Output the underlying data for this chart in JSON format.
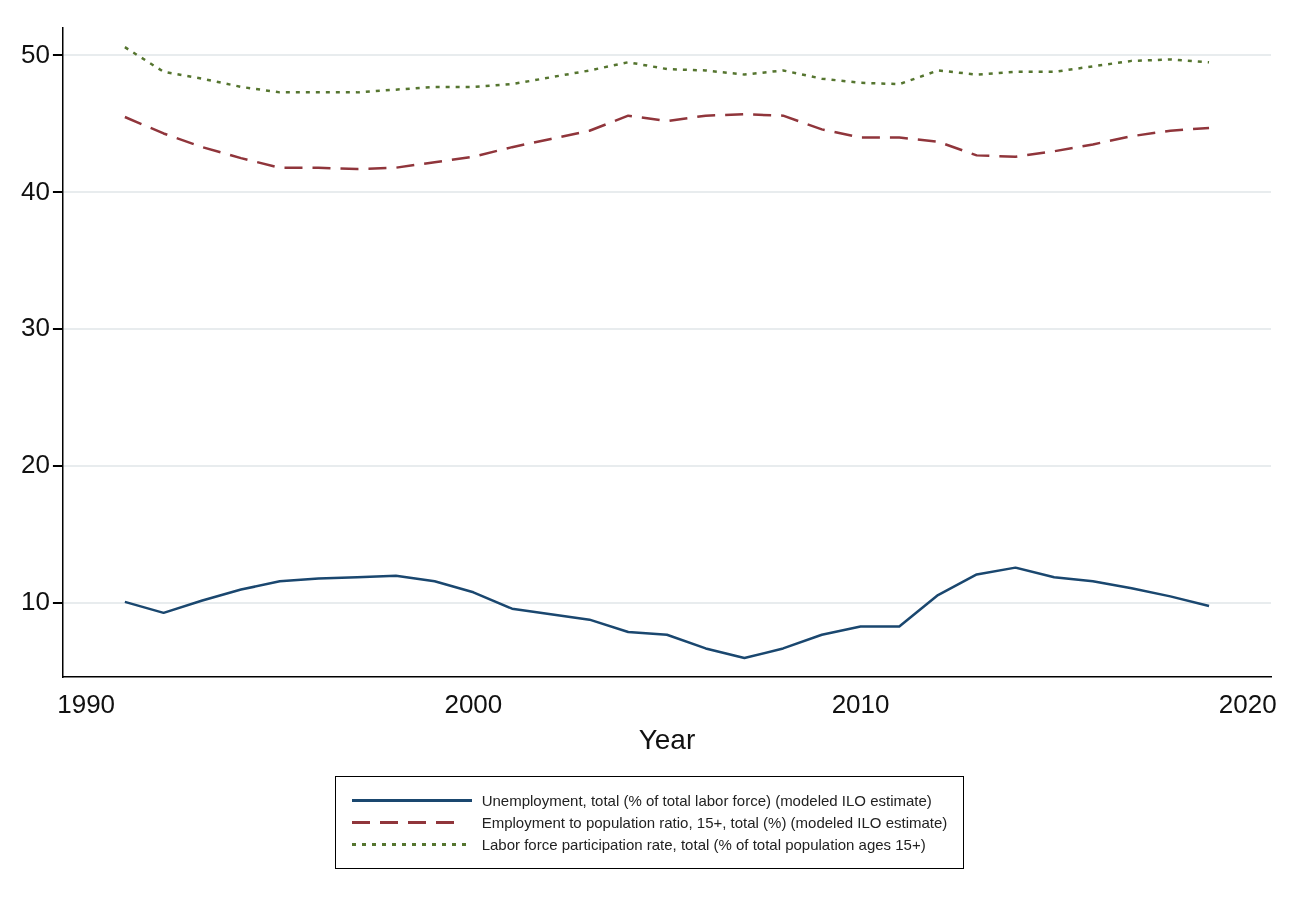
{
  "chart_data": {
    "type": "line",
    "xlabel": "Year",
    "x": [
      1991,
      1992,
      1993,
      1994,
      1995,
      1996,
      1997,
      1998,
      1999,
      2000,
      2001,
      2002,
      2003,
      2004,
      2005,
      2006,
      2007,
      2008,
      2009,
      2010,
      2011,
      2012,
      2013,
      2014,
      2015,
      2016,
      2017,
      2018,
      2019
    ],
    "series": [
      {
        "name": "Unemployment, total (% of total labor force) (modeled ILO estimate)",
        "color": "#1a476f",
        "line_style": "solid",
        "values": [
          10.1,
          9.3,
          10.2,
          11.0,
          11.6,
          11.8,
          11.9,
          12.0,
          11.6,
          10.8,
          9.6,
          9.2,
          8.8,
          7.9,
          7.7,
          6.7,
          6.0,
          6.7,
          7.7,
          8.3,
          8.3,
          10.6,
          12.1,
          12.6,
          11.9,
          11.6,
          11.1,
          10.5,
          9.8
        ]
      },
      {
        "name": "Employment to population ratio, 15+, total (%) (modeled ILO estimate)",
        "color": "#90353b",
        "line_style": "dashed",
        "values": [
          45.5,
          44.3,
          43.3,
          42.5,
          41.8,
          41.8,
          41.7,
          41.8,
          42.2,
          42.6,
          43.3,
          43.9,
          44.5,
          45.6,
          45.2,
          45.6,
          45.7,
          45.6,
          44.6,
          44.0,
          44.0,
          43.7,
          42.7,
          42.6,
          43.0,
          43.5,
          44.1,
          44.5,
          44.7
        ]
      },
      {
        "name": "Labor force participation rate, total (% of total population ages 15+)",
        "color": "#55752f",
        "line_style": "dotted",
        "values": [
          50.6,
          48.8,
          48.3,
          47.7,
          47.3,
          47.3,
          47.3,
          47.5,
          47.7,
          47.7,
          47.9,
          48.4,
          48.9,
          49.5,
          49.0,
          48.9,
          48.6,
          48.9,
          48.3,
          48.0,
          47.9,
          48.9,
          48.6,
          48.8,
          48.8,
          49.2,
          49.6,
          49.7,
          49.5
        ]
      }
    ],
    "xlim": [
      1989.4,
      2020.6
    ],
    "xticks": [
      1990,
      2000,
      2010,
      2020
    ],
    "ylim": [
      4.6,
      52
    ],
    "yticks": [
      10,
      20,
      30,
      40,
      50
    ],
    "grid": "y",
    "legend": "bottom"
  }
}
